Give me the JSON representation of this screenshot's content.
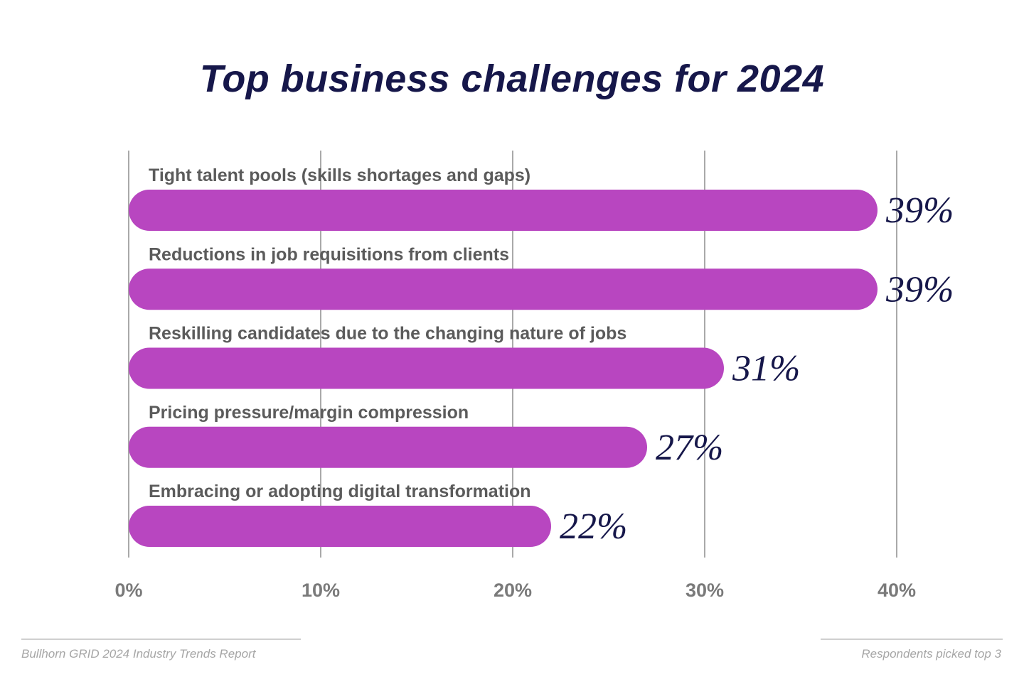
{
  "title": "Top business challenges for 2024",
  "chart_data": {
    "type": "bar",
    "orientation": "horizontal",
    "categories": [
      "Tight talent pools (skills shortages and gaps)",
      "Reductions in job requisitions from clients",
      "Reskilling candidates due to the changing nature of jobs",
      "Pricing pressure/margin compression",
      "Embracing or adopting digital transformation"
    ],
    "values": [
      39,
      39,
      31,
      27,
      22
    ],
    "value_labels": [
      "39%",
      "39%",
      "31%",
      "27%",
      "22%"
    ],
    "xlim": [
      0,
      40
    ],
    "x_ticks": [
      0,
      10,
      20,
      30,
      40
    ],
    "x_tick_labels": [
      "0%",
      "10%",
      "20%",
      "30%",
      "40%"
    ],
    "grid": true,
    "colors": {
      "bar": "#b846c0",
      "title": "#16174a",
      "value_label": "#16174a",
      "category_label": "#5b5b5b",
      "tick_label": "#7a7a7a",
      "grid": "#a9a9a9"
    }
  },
  "footer": {
    "source": "Bullhorn GRID 2024 Industry Trends Report",
    "note": "Respondents picked top 3"
  }
}
